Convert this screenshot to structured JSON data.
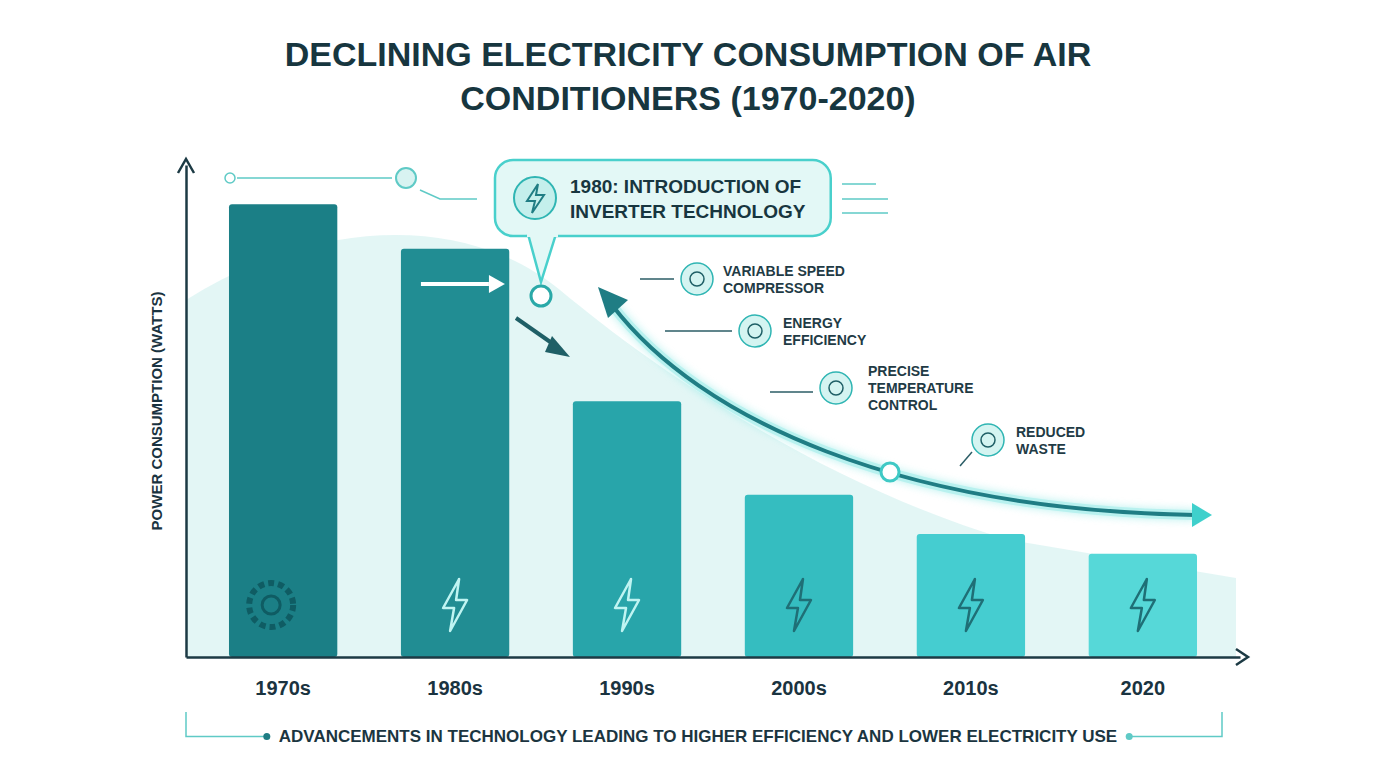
{
  "chart_data": {
    "type": "bar",
    "title": "DECLINING ELECTRICITY CONSUMPTION OF AIR CONDITIONERS (1970-2020)",
    "ylabel": "POWER CONSUMPTION (WATTS)",
    "categories": [
      "1970s",
      "1980s",
      "1990s",
      "2000s",
      "2010s",
      "2020"
    ],
    "values": [
      92,
      83,
      52,
      33,
      25,
      21
    ],
    "colors": [
      "#1b7f86",
      "#218d93",
      "#28a5aa",
      "#35bdc0",
      "#45cdd0",
      "#56d8d8"
    ],
    "ylim": [
      0,
      100
    ],
    "grid": false,
    "tick_labels": "x",
    "annotations": [
      "1980: INTRODUCTION OF INVERTER TECHNOLOGY",
      "VARIABLE SPEED COMPRESSOR",
      "ENERGY EFFICIENCY",
      "PRECISE TEMPERATURE CONTROL",
      "REDUCED WASTE",
      "ADVANCEMENTS IN TECHNOLOGY LEADING TO HIGHER EFFICIENCY AND LOWER ELECTRICITY USE"
    ]
  }
}
